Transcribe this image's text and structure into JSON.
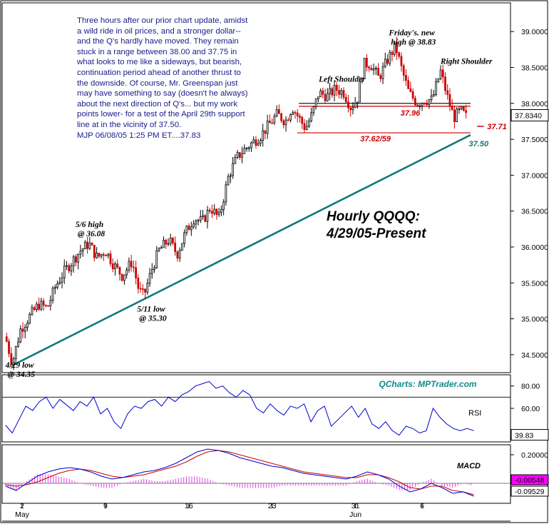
{
  "note_text": "Three hours after our prior chart update, amidst a wild ride in oil prices, and a stronger dollar-- and the Q's hardly have moved. They remain stuck in a range between 38.00 and 37.75 in what looks to me like a sideways, but bearish, continuation period ahead of another thrust to the downside. Of course, Mr. Greenspan just may have something to say (doesn't he always) about the next direction of Q's... but my work points lower- for a test of the April 29th support line at in the vicinity of 37.50.\nMJP 06/08/05 1:25 PM ET....37.83",
  "title_line1": "Hourly QQQQ:",
  "title_line2": "4/29/05-Present",
  "credit": "QCharts: MPTrader.com",
  "chart_data": {
    "type": "candlestick",
    "price_axis": {
      "ylim": [
        34.25,
        39.4
      ],
      "ticks": [
        "34.5000",
        "35.0000",
        "35.5000",
        "36.0000",
        "36.5000",
        "37.0000",
        "37.5000",
        "38.0000",
        "38.5000",
        "39.0000"
      ],
      "tick_values": [
        34.5,
        35.0,
        35.5,
        36.0,
        36.5,
        37.0,
        37.5,
        38.0,
        38.5,
        39.0
      ],
      "last_value_label": "37.8340",
      "last_value": 37.834
    },
    "x_axis": {
      "day_ticks": [
        {
          "label": "2",
          "sub": "May",
          "day": 0
        },
        {
          "label": "9",
          "sub": "",
          "day": 5
        },
        {
          "label": "16",
          "sub": "",
          "day": 10
        },
        {
          "label": "23",
          "sub": "",
          "day": 15
        },
        {
          "label": "31",
          "sub": "Jun",
          "day": 20
        },
        {
          "label": "6",
          "sub": "",
          "day": 24
        }
      ],
      "day_range": [
        -1.2,
        29.3
      ]
    },
    "price_series": [
      {
        "day": -1.0,
        "price": 34.75
      },
      {
        "day": -0.6,
        "price": 34.38
      },
      {
        "day": -0.1,
        "price": 34.85
      },
      {
        "day": 0.5,
        "price": 35.05
      },
      {
        "day": 1.0,
        "price": 35.2
      },
      {
        "day": 1.5,
        "price": 35.15
      },
      {
        "day": 2.0,
        "price": 35.45
      },
      {
        "day": 2.5,
        "price": 35.65
      },
      {
        "day": 3.0,
        "price": 35.8
      },
      {
        "day": 3.5,
        "price": 35.95
      },
      {
        "day": 4.0,
        "price": 36.05
      },
      {
        "day": 4.5,
        "price": 35.85
      },
      {
        "day": 5.0,
        "price": 35.95
      },
      {
        "day": 5.5,
        "price": 35.75
      },
      {
        "day": 6.0,
        "price": 35.6
      },
      {
        "day": 6.6,
        "price": 35.8
      },
      {
        "day": 7.0,
        "price": 35.4
      },
      {
        "day": 7.3,
        "price": 35.32
      },
      {
        "day": 7.8,
        "price": 35.7
      },
      {
        "day": 8.2,
        "price": 35.95
      },
      {
        "day": 8.8,
        "price": 36.1
      },
      {
        "day": 9.3,
        "price": 35.9
      },
      {
        "day": 9.8,
        "price": 36.2
      },
      {
        "day": 10.3,
        "price": 36.4
      },
      {
        "day": 10.8,
        "price": 36.35
      },
      {
        "day": 11.3,
        "price": 36.55
      },
      {
        "day": 11.8,
        "price": 36.4
      },
      {
        "day": 12.4,
        "price": 37.0
      },
      {
        "day": 12.9,
        "price": 37.25
      },
      {
        "day": 13.3,
        "price": 37.35
      },
      {
        "day": 13.8,
        "price": 37.45
      },
      {
        "day": 14.3,
        "price": 37.55
      },
      {
        "day": 14.8,
        "price": 37.7
      },
      {
        "day": 15.3,
        "price": 37.85
      },
      {
        "day": 15.8,
        "price": 37.75
      },
      {
        "day": 16.2,
        "price": 37.95
      },
      {
        "day": 16.6,
        "price": 37.8
      },
      {
        "day": 17.0,
        "price": 37.65
      },
      {
        "day": 17.4,
        "price": 37.85
      },
      {
        "day": 17.8,
        "price": 38.15
      },
      {
        "day": 18.3,
        "price": 38.1
      },
      {
        "day": 18.8,
        "price": 38.2
      },
      {
        "day": 19.3,
        "price": 38.15
      },
      {
        "day": 19.7,
        "price": 37.95
      },
      {
        "day": 20.1,
        "price": 38.05
      },
      {
        "day": 20.5,
        "price": 38.55
      },
      {
        "day": 20.9,
        "price": 38.55
      },
      {
        "day": 21.4,
        "price": 38.35
      },
      {
        "day": 21.9,
        "price": 38.6
      },
      {
        "day": 22.4,
        "price": 38.8
      },
      {
        "day": 22.8,
        "price": 38.45
      },
      {
        "day": 23.2,
        "price": 38.15
      },
      {
        "day": 23.7,
        "price": 38.0
      },
      {
        "day": 24.2,
        "price": 38.05
      },
      {
        "day": 24.6,
        "price": 38.05
      },
      {
        "day": 25.1,
        "price": 38.45
      },
      {
        "day": 25.5,
        "price": 38.1
      },
      {
        "day": 25.9,
        "price": 37.8
      },
      {
        "day": 26.3,
        "price": 37.9
      },
      {
        "day": 26.7,
        "price": 37.8
      }
    ],
    "trendline": {
      "from": {
        "day": -0.6,
        "price": 34.35
      },
      "to": {
        "day": 26.9,
        "price": 37.56
      },
      "label": "37.50",
      "label_price": 37.45
    },
    "levels": [
      {
        "price": 38.0,
        "from_day": 16.6,
        "to_day": 26.9,
        "color": "#000000"
      },
      {
        "price": 37.96,
        "label": "37.96",
        "from_day": 16.6,
        "to_day": 26.9,
        "color": "#cc0000"
      },
      {
        "price": 37.71,
        "label": "37.71",
        "color": "#cc0000"
      },
      {
        "price": 37.59,
        "label": "37.62/59",
        "from_day": 16.5,
        "to_day": 26.9,
        "color": "#cc0000"
      }
    ],
    "annotations": [
      {
        "line1": "4/29 low",
        "line2": "@ 34.35",
        "day": -1.0,
        "price": 34.32
      },
      {
        "line1": "5/6 high",
        "line2": "@ 36.08",
        "day": 3.2,
        "price": 36.28
      },
      {
        "line1": "5/11 low",
        "line2": "@ 35.30",
        "day": 6.9,
        "price": 35.1
      },
      {
        "line1": "Left Shoulder",
        "line2": "",
        "day": 17.8,
        "price": 38.3
      },
      {
        "line1": "Friday's. new",
        "line2": "high @ 38.83",
        "day": 22.0,
        "price": 38.95
      },
      {
        "line1": "Right Shoulder",
        "line2": "",
        "day": 25.1,
        "price": 38.55
      }
    ],
    "rsi": {
      "label": "RSI",
      "ylim": [
        30,
        90
      ],
      "ticks": [
        "80.00",
        "60.00"
      ],
      "tick_values": [
        80,
        60
      ],
      "upper": 70,
      "lower": 30,
      "last_label": "39.83",
      "last_value": 39.83,
      "values": [
        45,
        38,
        50,
        62,
        58,
        66,
        70,
        60,
        68,
        63,
        58,
        66,
        62,
        70,
        55,
        60,
        48,
        42,
        55,
        62,
        60,
        66,
        68,
        62,
        70,
        66,
        72,
        75,
        80,
        82,
        84,
        78,
        80,
        74,
        70,
        76,
        72,
        60,
        56,
        64,
        58,
        54,
        62,
        60,
        64,
        48,
        58,
        62,
        44,
        50,
        56,
        62,
        52,
        60,
        46,
        42,
        48,
        40,
        36,
        44,
        42,
        38,
        40,
        60,
        52,
        46,
        42,
        40,
        42,
        40
      ]
    },
    "macd": {
      "label": "MACD",
      "ylim": [
        -0.14,
        0.27
      ],
      "ticks": [
        "0.20000"
      ],
      "tick_values": [
        0.2
      ],
      "last_labels": [
        "-0.00548",
        "-0.09529"
      ],
      "last_values": [
        -0.00548,
        -0.09529
      ],
      "macd_values": [
        -0.02,
        -0.05,
        0.0,
        0.05,
        0.08,
        0.1,
        0.11,
        0.1,
        0.08,
        0.05,
        0.03,
        0.04,
        0.06,
        0.08,
        0.09,
        0.11,
        0.14,
        0.18,
        0.22,
        0.24,
        0.23,
        0.21,
        0.18,
        0.16,
        0.14,
        0.12,
        0.11,
        0.09,
        0.07,
        0.06,
        0.05,
        0.04,
        0.03,
        0.05,
        0.08,
        0.06,
        0.03,
        -0.02,
        -0.06,
        -0.04,
        0.0,
        -0.03,
        -0.07,
        -0.06,
        -0.09
      ],
      "signal_values": [
        -0.01,
        -0.02,
        -0.01,
        0.01,
        0.04,
        0.07,
        0.09,
        0.1,
        0.09,
        0.07,
        0.05,
        0.04,
        0.05,
        0.06,
        0.08,
        0.1,
        0.12,
        0.15,
        0.19,
        0.22,
        0.23,
        0.22,
        0.2,
        0.18,
        0.16,
        0.14,
        0.12,
        0.1,
        0.08,
        0.07,
        0.06,
        0.05,
        0.04,
        0.04,
        0.06,
        0.06,
        0.04,
        0.01,
        -0.03,
        -0.04,
        -0.02,
        -0.02,
        -0.05,
        -0.06,
        -0.08
      ]
    }
  },
  "colors": {
    "up": "#000000",
    "down": "#cc0000",
    "trend": "#107a7a",
    "rsi": "#0000cc",
    "macd_line": "#0000cc",
    "signal_line": "#cc0000",
    "hist": "#e040e0",
    "tag_bg": "#ff00ff",
    "tag_text": "#ffffff"
  }
}
